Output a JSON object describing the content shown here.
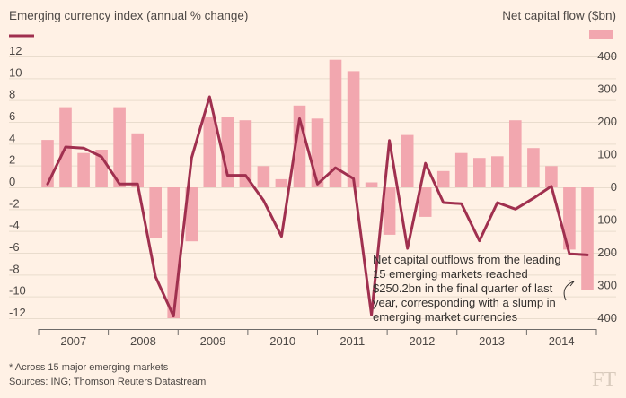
{
  "chart_data": {
    "type": "bar+line",
    "left_axis": {
      "title": "Emerging currency index (annual % change)",
      "ticks": [
        "12",
        "10",
        "8",
        "6",
        "4",
        "2",
        "0",
        "-2",
        "-4",
        "-6",
        "-8",
        "-10",
        "-12"
      ],
      "range": [
        -12,
        12
      ]
    },
    "right_axis": {
      "title": "Net capital flow ($bn)",
      "ticks": [
        "400",
        "300",
        "200",
        "100",
        "0",
        "100",
        "200",
        "300",
        "400"
      ],
      "range": [
        -400,
        400
      ]
    },
    "x_axis": {
      "ticks": [
        "2007",
        "2008",
        "2009",
        "2010",
        "2011",
        "2012",
        "2013",
        "2014"
      ]
    },
    "bars": {
      "values": [
        145,
        245,
        105,
        115,
        245,
        165,
        -155,
        -400,
        -165,
        215,
        215,
        205,
        65,
        25,
        250,
        210,
        390,
        355,
        15,
        -145,
        160,
        -90,
        50,
        105,
        90,
        95,
        205,
        120,
        65,
        -190,
        -315
      ],
      "color": "#f2a7af"
    },
    "line": {
      "values": [
        0.3,
        3.7,
        3.6,
        2.8,
        0.3,
        0.3,
        -8.2,
        -11.8,
        2.7,
        8.3,
        1.1,
        1.1,
        -1.2,
        -4.5,
        6.3,
        0.3,
        1.8,
        0.8,
        -11.7,
        4.3,
        -5.6,
        2.2,
        -1.4,
        -1.5,
        -4.9,
        -1.4,
        -2.0,
        -1.0,
        0.1,
        -6.1,
        -6.2
      ],
      "color": "#a0304f"
    },
    "annotation": [
      "Net capital outflows from the leading",
      "15 emerging markets reached",
      "$250.2bn in the final quarter of last",
      "year, corresponding with a slump in",
      "emerging market currencies"
    ]
  },
  "footnote": "* Across 15 major emerging markets",
  "sources": "Sources: ING; Thomson Reuters Datastream",
  "logo": "FT"
}
